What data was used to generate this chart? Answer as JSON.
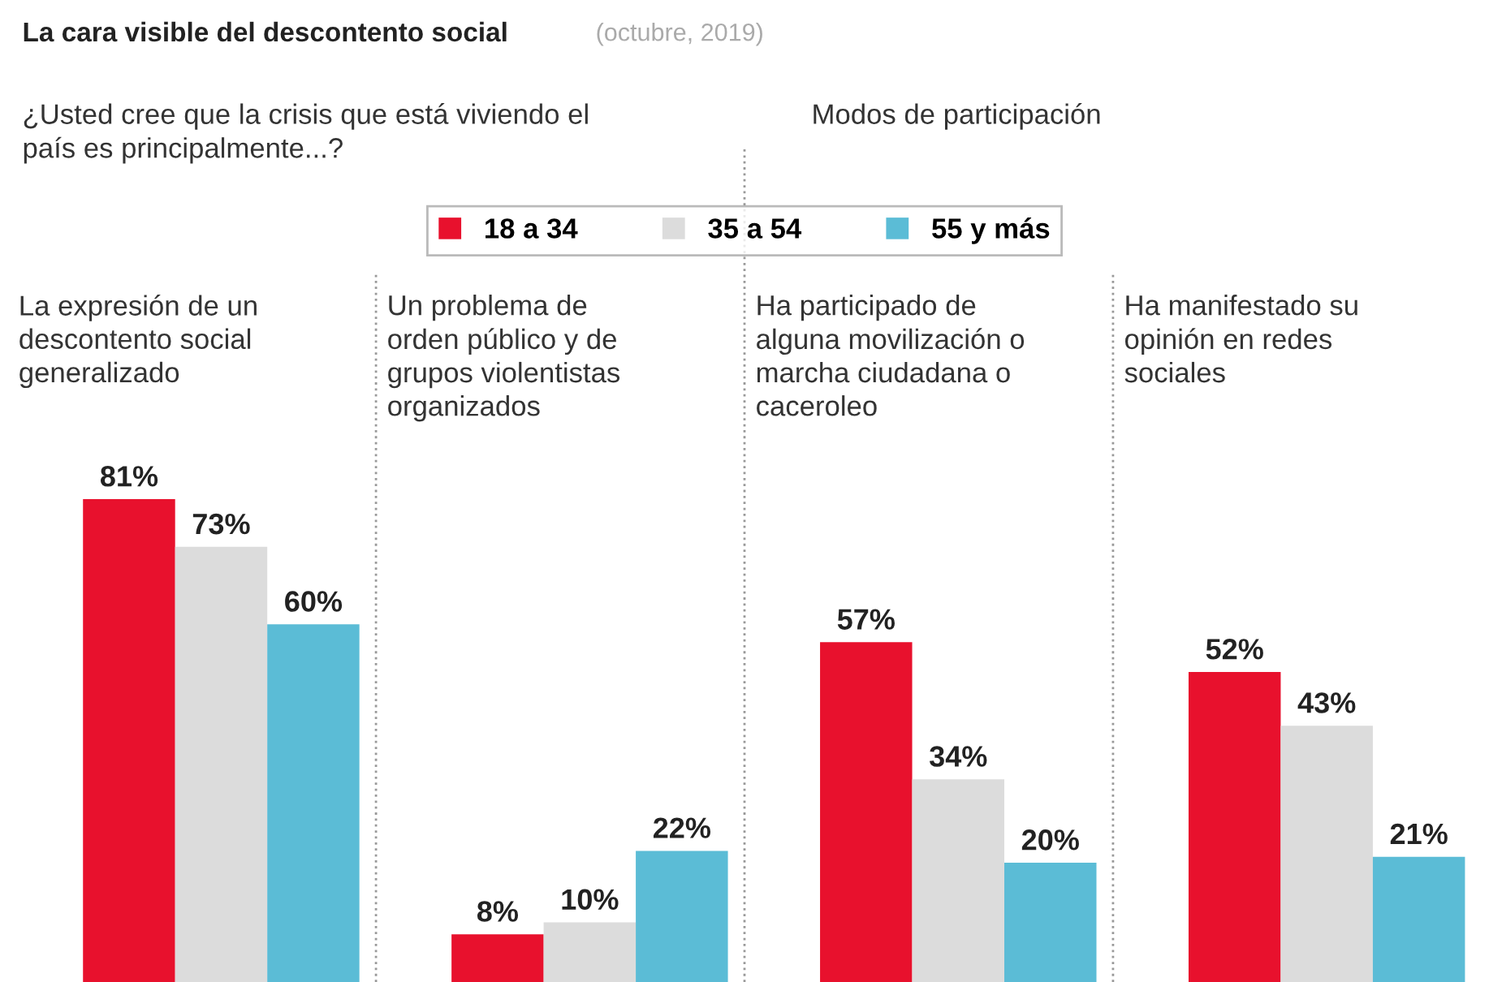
{
  "chart_data": {
    "type": "bar",
    "title": "La cara visible del descontento social",
    "subtitle": "(octubre, 2019)",
    "annotations": [
      "¿Usted cree que la crisis que está viviendo el\npaís es principalmente...?",
      "Modos de participación"
    ],
    "categories": [
      "La expresión de un\ndescontento social\ngeneralizado",
      "Un problema de\norden público y de\ngrupos violentistas\norganizados",
      "Ha participado de\nalguna movilización o\nmarcha ciudadana o\ncaceroleo",
      "Ha manifestado su\nopinión en redes\nsociales"
    ],
    "series": [
      {
        "name": "18 a 34",
        "color": "#e8112d",
        "values": [
          81,
          8,
          57,
          52
        ],
        "value_labels": [
          "81%",
          "8%",
          "57%",
          "52%"
        ]
      },
      {
        "name": "35 a 54",
        "color": "#dcdcdc",
        "values": [
          73,
          10,
          34,
          43
        ],
        "value_labels": [
          "73%",
          "10%",
          "34%",
          "43%"
        ]
      },
      {
        "name": "55 y más",
        "color": "#5bbcd6",
        "values": [
          60,
          22,
          20,
          21
        ],
        "value_labels": [
          "60%",
          "22%",
          "20%",
          "21%"
        ]
      }
    ],
    "legend": "top"
  }
}
